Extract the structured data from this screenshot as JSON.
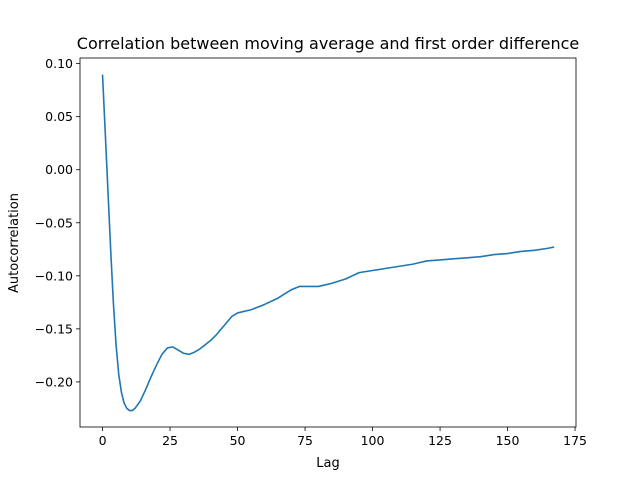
{
  "chart_data": {
    "type": "line",
    "title": "Correlation between moving average and first order difference",
    "xlabel": "Lag",
    "ylabel": "Autocorrelation",
    "xlim": [
      -8.35,
      175.35
    ],
    "ylim": [
      -0.2425,
      0.1053
    ],
    "x_ticks": [
      0,
      25,
      50,
      75,
      100,
      125,
      150,
      175
    ],
    "x_tick_labels": [
      "0",
      "25",
      "50",
      "75",
      "100",
      "125",
      "150",
      "175"
    ],
    "y_ticks": [
      0.1,
      0.05,
      0.0,
      -0.05,
      -0.1,
      -0.15,
      -0.2
    ],
    "y_tick_labels": [
      "0.10",
      "0.05",
      "0.00",
      "−0.05",
      "−0.10",
      "−0.15",
      "−0.20"
    ],
    "grid": false,
    "legend": "none",
    "series": [
      {
        "color": "#1f77b4",
        "points": [
          [
            0,
            0.089
          ],
          [
            1,
            0.035
          ],
          [
            2,
            -0.02
          ],
          [
            3,
            -0.075
          ],
          [
            4,
            -0.125
          ],
          [
            5,
            -0.165
          ],
          [
            6,
            -0.193
          ],
          [
            7,
            -0.21
          ],
          [
            8,
            -0.22
          ],
          [
            9,
            -0.225
          ],
          [
            10,
            -0.227
          ],
          [
            11,
            -0.227
          ],
          [
            12,
            -0.225
          ],
          [
            14,
            -0.218
          ],
          [
            16,
            -0.207
          ],
          [
            18,
            -0.195
          ],
          [
            20,
            -0.184
          ],
          [
            22,
            -0.174
          ],
          [
            24,
            -0.168
          ],
          [
            26,
            -0.167
          ],
          [
            28,
            -0.17
          ],
          [
            30,
            -0.173
          ],
          [
            32,
            -0.174
          ],
          [
            34,
            -0.172
          ],
          [
            36,
            -0.169
          ],
          [
            38,
            -0.165
          ],
          [
            40,
            -0.161
          ],
          [
            42,
            -0.156
          ],
          [
            44,
            -0.15
          ],
          [
            46,
            -0.144
          ],
          [
            48,
            -0.138
          ],
          [
            50,
            -0.135
          ],
          [
            55,
            -0.132
          ],
          [
            60,
            -0.127
          ],
          [
            65,
            -0.121
          ],
          [
            70,
            -0.113
          ],
          [
            73,
            -0.11
          ],
          [
            75,
            -0.11
          ],
          [
            80,
            -0.11
          ],
          [
            85,
            -0.107
          ],
          [
            90,
            -0.103
          ],
          [
            95,
            -0.097
          ],
          [
            100,
            -0.095
          ],
          [
            105,
            -0.093
          ],
          [
            110,
            -0.091
          ],
          [
            115,
            -0.089
          ],
          [
            120,
            -0.086
          ],
          [
            125,
            -0.085
          ],
          [
            130,
            -0.084
          ],
          [
            135,
            -0.083
          ],
          [
            140,
            -0.082
          ],
          [
            145,
            -0.08
          ],
          [
            150,
            -0.079
          ],
          [
            155,
            -0.077
          ],
          [
            160,
            -0.076
          ],
          [
            165,
            -0.074
          ],
          [
            167,
            -0.073
          ]
        ]
      }
    ]
  }
}
